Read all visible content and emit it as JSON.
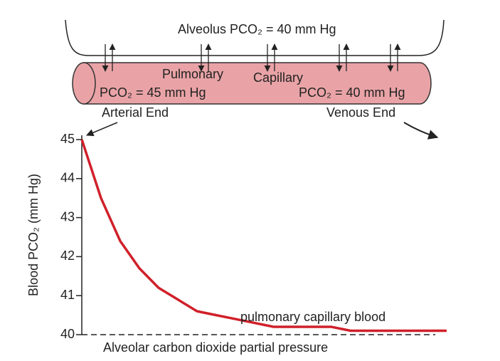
{
  "chart_data": {
    "type": "line",
    "ylabel": "Blood PCO₂ (mm Hg)",
    "categories": [
      null,
      null,
      null,
      null,
      null,
      null,
      null,
      null,
      null,
      null,
      null,
      null,
      null,
      null,
      null,
      null,
      null,
      null,
      null,
      null
    ],
    "series": [
      {
        "name": "pulmonary capillary blood",
        "color": "#d0202a",
        "values": [
          45,
          43.5,
          42.4,
          41.7,
          41.2,
          40.9,
          40.6,
          40.5,
          40.4,
          40.3,
          40.2,
          40.2,
          40.2,
          40.2,
          40.1,
          40.1,
          40.1,
          40.1,
          40.1,
          40.1
        ]
      }
    ],
    "ylim": [
      40,
      45
    ],
    "yticks": [
      40,
      41,
      42,
      43,
      44,
      45
    ],
    "reference": {
      "value": 40,
      "label": "Alveolar carbon dioxide partial pressure"
    },
    "annotations": {
      "alveolus": "Alveolus PCO₂ = 40 mm Hg",
      "pulmonary": "Pulmonary",
      "capillary": "Capillary",
      "arterial_pressure": "PCO₂ = 45 mm Hg",
      "venous_pressure": "PCO₂ = 40 mm Hg",
      "arterial_end": "Arterial End",
      "venous_end": "Venous End"
    }
  }
}
